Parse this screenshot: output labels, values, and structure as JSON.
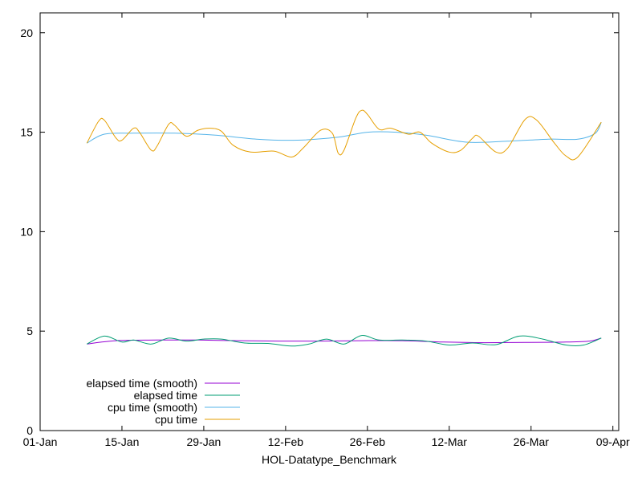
{
  "chart_data": {
    "type": "line",
    "title": "",
    "xlabel": "HOL-Datatype_Benchmark",
    "ylabel": "",
    "x_ticks": [
      "01-Jan",
      "15-Jan",
      "29-Jan",
      "12-Feb",
      "26-Feb",
      "12-Mar",
      "26-Mar",
      "09-Apr"
    ],
    "y_ticks": [
      "0",
      "5",
      "10",
      "15",
      "20"
    ],
    "xlim": [
      "2024-01-01",
      "2024-04-09"
    ],
    "ylim": [
      0,
      21
    ],
    "grid": false,
    "legend_position": "bottom-left",
    "series": [
      {
        "name": "elapsed time (smooth)",
        "color": "#9400d3",
        "points": [
          [
            "2024-01-09",
            4.35
          ],
          [
            "2024-01-14",
            4.52
          ],
          [
            "2024-01-21",
            4.55
          ],
          [
            "2024-01-28",
            4.55
          ],
          [
            "2024-02-04",
            4.52
          ],
          [
            "2024-02-11",
            4.5
          ],
          [
            "2024-02-18",
            4.5
          ],
          [
            "2024-02-25",
            4.52
          ],
          [
            "2024-03-03",
            4.52
          ],
          [
            "2024-03-10",
            4.45
          ],
          [
            "2024-03-17",
            4.42
          ],
          [
            "2024-03-24",
            4.43
          ],
          [
            "2024-03-31",
            4.45
          ],
          [
            "2024-04-04",
            4.5
          ],
          [
            "2024-04-06",
            4.65
          ]
        ]
      },
      {
        "name": "elapsed time",
        "color": "#009e73",
        "points": [
          [
            "2024-01-09",
            4.35
          ],
          [
            "2024-01-12",
            4.75
          ],
          [
            "2024-01-15",
            4.45
          ],
          [
            "2024-01-17",
            4.55
          ],
          [
            "2024-01-20",
            4.35
          ],
          [
            "2024-01-23",
            4.65
          ],
          [
            "2024-01-26",
            4.5
          ],
          [
            "2024-01-29",
            4.6
          ],
          [
            "2024-02-01",
            4.6
          ],
          [
            "2024-02-05",
            4.4
          ],
          [
            "2024-02-09",
            4.38
          ],
          [
            "2024-02-13",
            4.25
          ],
          [
            "2024-02-16",
            4.35
          ],
          [
            "2024-02-19",
            4.6
          ],
          [
            "2024-02-22",
            4.35
          ],
          [
            "2024-02-25",
            4.78
          ],
          [
            "2024-02-28",
            4.55
          ],
          [
            "2024-03-03",
            4.55
          ],
          [
            "2024-03-07",
            4.5
          ],
          [
            "2024-03-11",
            4.3
          ],
          [
            "2024-03-15",
            4.4
          ],
          [
            "2024-03-19",
            4.32
          ],
          [
            "2024-03-23",
            4.75
          ],
          [
            "2024-03-27",
            4.6
          ],
          [
            "2024-03-31",
            4.3
          ],
          [
            "2024-04-03",
            4.3
          ],
          [
            "2024-04-06",
            4.65
          ]
        ]
      },
      {
        "name": "cpu time (smooth)",
        "color": "#56b4e9",
        "points": [
          [
            "2024-01-09",
            14.45
          ],
          [
            "2024-01-12",
            14.9
          ],
          [
            "2024-01-17",
            14.95
          ],
          [
            "2024-01-24",
            14.95
          ],
          [
            "2024-01-31",
            14.85
          ],
          [
            "2024-02-07",
            14.65
          ],
          [
            "2024-02-14",
            14.6
          ],
          [
            "2024-02-21",
            14.75
          ],
          [
            "2024-02-26",
            15.0
          ],
          [
            "2024-03-02",
            15.0
          ],
          [
            "2024-03-07",
            14.85
          ],
          [
            "2024-03-14",
            14.5
          ],
          [
            "2024-03-21",
            14.55
          ],
          [
            "2024-03-28",
            14.65
          ],
          [
            "2024-04-02",
            14.65
          ],
          [
            "2024-04-05",
            14.95
          ],
          [
            "2024-04-06",
            15.5
          ]
        ]
      },
      {
        "name": "cpu time",
        "color": "#e69f00",
        "points": [
          [
            "2024-01-09",
            14.45
          ],
          [
            "2024-01-11",
            15.55
          ],
          [
            "2024-01-12",
            15.6
          ],
          [
            "2024-01-14",
            14.7
          ],
          [
            "2024-01-15",
            14.6
          ],
          [
            "2024-01-17",
            15.2
          ],
          [
            "2024-01-18",
            15.0
          ],
          [
            "2024-01-20",
            14.1
          ],
          [
            "2024-01-21",
            14.3
          ],
          [
            "2024-01-23",
            15.4
          ],
          [
            "2024-01-24",
            15.35
          ],
          [
            "2024-01-26",
            14.8
          ],
          [
            "2024-01-28",
            15.1
          ],
          [
            "2024-01-30",
            15.2
          ],
          [
            "2024-02-01",
            15.05
          ],
          [
            "2024-02-03",
            14.35
          ],
          [
            "2024-02-06",
            14.0
          ],
          [
            "2024-02-10",
            14.05
          ],
          [
            "2024-02-13",
            13.75
          ],
          [
            "2024-02-15",
            14.2
          ],
          [
            "2024-02-18",
            15.1
          ],
          [
            "2024-02-20",
            14.95
          ],
          [
            "2024-02-21",
            13.95
          ],
          [
            "2024-02-22",
            14.1
          ],
          [
            "2024-02-24",
            15.7
          ],
          [
            "2024-02-25",
            16.1
          ],
          [
            "2024-02-26",
            15.9
          ],
          [
            "2024-02-28",
            15.15
          ],
          [
            "2024-03-01",
            15.2
          ],
          [
            "2024-03-04",
            14.9
          ],
          [
            "2024-03-06",
            15.0
          ],
          [
            "2024-03-08",
            14.45
          ],
          [
            "2024-03-11",
            14.0
          ],
          [
            "2024-03-13",
            14.1
          ],
          [
            "2024-03-15",
            14.7
          ],
          [
            "2024-03-16",
            14.8
          ],
          [
            "2024-03-19",
            14.0
          ],
          [
            "2024-03-21",
            14.2
          ],
          [
            "2024-03-24",
            15.65
          ],
          [
            "2024-03-26",
            15.6
          ],
          [
            "2024-03-29",
            14.45
          ],
          [
            "2024-03-31",
            13.8
          ],
          [
            "2024-04-02",
            13.75
          ],
          [
            "2024-04-06",
            15.5
          ]
        ]
      }
    ]
  }
}
